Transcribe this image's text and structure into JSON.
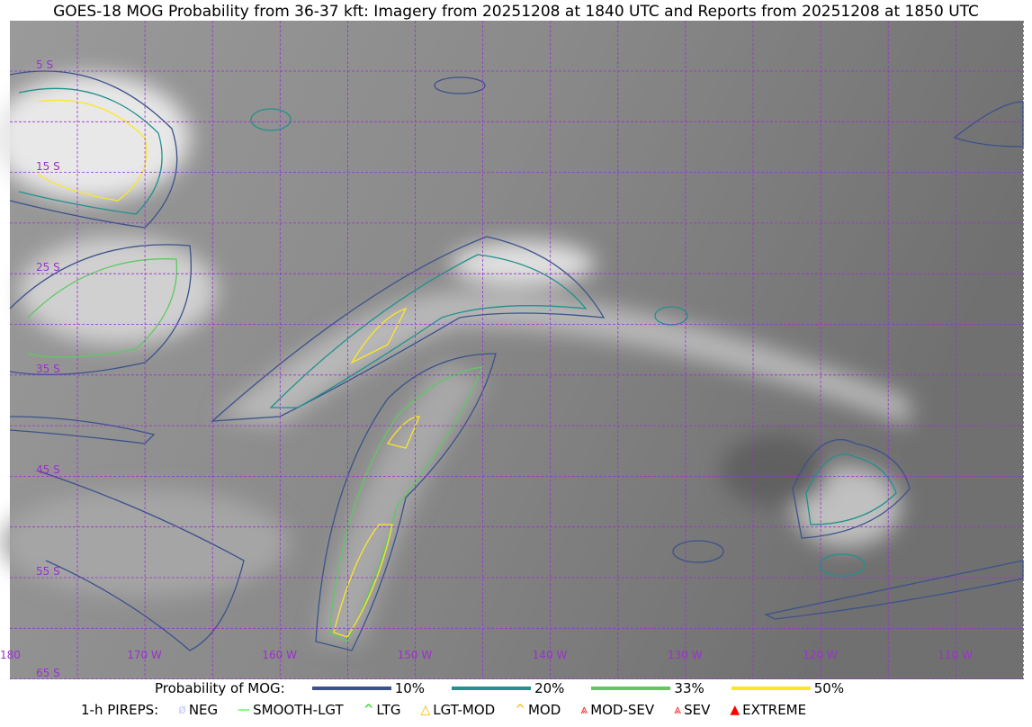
{
  "title": "GOES-18 MOG Probability from 36-37 kft: Imagery from 20251208 at 1840 UTC and Reports from 20251208 at 1850 UTC",
  "map": {
    "lat_labels": [
      "5 S",
      "15 S",
      "25 S",
      "35 S",
      "45 S",
      "55 S",
      "65 S"
    ],
    "lon_labels": [
      "180",
      "170 W",
      "160 W",
      "150 W",
      "140 W",
      "130 W",
      "120 W",
      "110 W"
    ],
    "grid_color": "#9932cc"
  },
  "legend": {
    "probability_label": "Probability of MOG:",
    "levels": [
      {
        "label": "10%",
        "color": "#3b528b"
      },
      {
        "label": "20%",
        "color": "#21918c"
      },
      {
        "label": "33%",
        "color": "#5ec962"
      },
      {
        "label": "50%",
        "color": "#fde725"
      }
    ],
    "pireps_label": "1-h PIREPS:",
    "pireps": [
      {
        "label": "NEG",
        "icon": "neg-icon",
        "color": "#c8c8ff",
        "glyph": "ø"
      },
      {
        "label": "SMOOTH-LGT",
        "icon": "smooth-lgt-icon",
        "color": "#00ff00",
        "glyph": "—"
      },
      {
        "label": "LTG",
        "icon": "ltg-icon",
        "color": "#00dd00",
        "glyph": "^"
      },
      {
        "label": "LGT-MOD",
        "icon": "lgt-mod-icon",
        "color": "#ffb000",
        "glyph": "△"
      },
      {
        "label": "MOD",
        "icon": "mod-icon",
        "color": "#ffb000",
        "glyph": "^"
      },
      {
        "label": "MOD-SEV",
        "icon": "mod-sev-icon",
        "color": "#ff2020",
        "glyph": "⩓"
      },
      {
        "label": "SEV",
        "icon": "sev-icon",
        "color": "#ff2020",
        "glyph": "⩓"
      },
      {
        "label": "EXTREME",
        "icon": "extreme-icon",
        "color": "#ff0000",
        "glyph": "▲"
      }
    ]
  }
}
